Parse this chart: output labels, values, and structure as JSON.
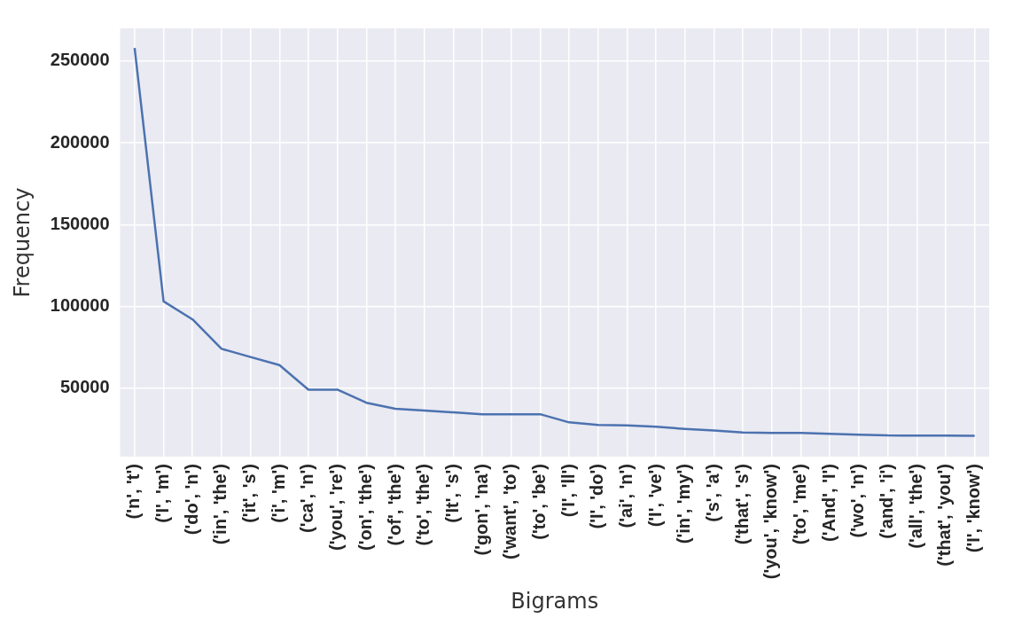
{
  "chart_data": {
    "type": "line",
    "xlabel": "Bigrams",
    "ylabel": "Frequency",
    "categories": [
      "('n', 't')",
      "('I', 'm')",
      "('do', 'n')",
      "('in', 'the')",
      "('it', 's')",
      "('i', 'm')",
      "('ca', 'n')",
      "('you', 're')",
      "('on', 'the')",
      "('of', 'the')",
      "('to', 'the')",
      "('It', 's')",
      "('gon', 'na')",
      "('want', 'to')",
      "('to', 'be')",
      "('I', 'll')",
      "('I', 'do')",
      "('ai', 'n')",
      "('I', 've')",
      "('in', 'my')",
      "('s', 'a')",
      "('that', 's')",
      "('you', 'know')",
      "('to', 'me')",
      "('And', 'I')",
      "('wo', 'n')",
      "('and', 'i')",
      "('all', 'the')",
      "('that', 'you')",
      "('I', 'know')"
    ],
    "series": [
      {
        "color": "#4c72b0",
        "values": [
          258000,
          103000,
          92000,
          74000,
          69000,
          64000,
          49000,
          49000,
          41000,
          37300,
          36200,
          35100,
          34000,
          34000,
          34000,
          29000,
          27400,
          27200,
          26300,
          25000,
          24000,
          22800,
          22600,
          22500,
          22000,
          21500,
          21000,
          20900,
          20900,
          20800
        ]
      }
    ],
    "ylim": [
      8000,
      270000
    ],
    "yticks": [
      50000,
      100000,
      150000,
      200000,
      250000
    ],
    "grid": true,
    "marker": "none",
    "line_style": "solid"
  }
}
